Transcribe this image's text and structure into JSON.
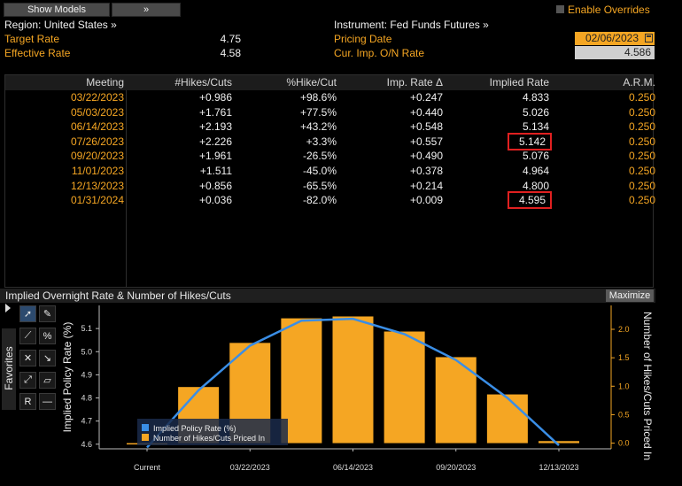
{
  "toolbar": {
    "show_models_label": "Show Models",
    "expand_label": "»",
    "enable_overrides_label": "Enable Overrides"
  },
  "info": {
    "region_label": "Region: United States »",
    "instrument_label": "Instrument: Fed Funds Futures »",
    "target_rate_label": "Target Rate",
    "target_rate_value": "4.75",
    "effective_rate_label": "Effective Rate",
    "effective_rate_value": "4.58",
    "pricing_date_label": "Pricing Date",
    "pricing_date_value": "02/06/2023",
    "cur_imp_label": "Cur. Imp. O/N Rate",
    "cur_imp_value": "4.586"
  },
  "table": {
    "headers": [
      "Meeting",
      "#Hikes/Cuts",
      "%Hike/Cut",
      "Imp. Rate Δ",
      "Implied Rate",
      "A.R.M."
    ],
    "rows": [
      {
        "meeting": "03/22/2023",
        "hikes": "+0.986",
        "pct": "+98.6%",
        "delta": "+0.247",
        "implied": "4.833",
        "arm": "0.250",
        "highlight": false
      },
      {
        "meeting": "05/03/2023",
        "hikes": "+1.761",
        "pct": "+77.5%",
        "delta": "+0.440",
        "implied": "5.026",
        "arm": "0.250",
        "highlight": false
      },
      {
        "meeting": "06/14/2023",
        "hikes": "+2.193",
        "pct": "+43.2%",
        "delta": "+0.548",
        "implied": "5.134",
        "arm": "0.250",
        "highlight": false
      },
      {
        "meeting": "07/26/2023",
        "hikes": "+2.226",
        "pct": "+3.3%",
        "delta": "+0.557",
        "implied": "5.142",
        "arm": "0.250",
        "highlight": true
      },
      {
        "meeting": "09/20/2023",
        "hikes": "+1.961",
        "pct": "-26.5%",
        "delta": "+0.490",
        "implied": "5.076",
        "arm": "0.250",
        "highlight": false
      },
      {
        "meeting": "11/01/2023",
        "hikes": "+1.511",
        "pct": "-45.0%",
        "delta": "+0.378",
        "implied": "4.964",
        "arm": "0.250",
        "highlight": false
      },
      {
        "meeting": "12/13/2023",
        "hikes": "+0.856",
        "pct": "-65.5%",
        "delta": "+0.214",
        "implied": "4.800",
        "arm": "0.250",
        "highlight": false
      },
      {
        "meeting": "01/31/2024",
        "hikes": "+0.036",
        "pct": "-82.0%",
        "delta": "+0.009",
        "implied": "4.595",
        "arm": "0.250",
        "highlight": true
      }
    ]
  },
  "chart_panel": {
    "title": "Implied Overnight Rate & Number of Hikes/Cuts",
    "maximize_label": "Maximize",
    "favorites_label": "Favorites"
  },
  "chart_data": {
    "type": "bar",
    "categories": [
      "Current",
      "03/22/2023",
      "05/03/2023",
      "06/14/2023",
      "07/26/2023",
      "09/20/2023",
      "11/01/2023",
      "12/13/2023",
      "01/31/2024"
    ],
    "x_tick_labels": [
      "Current",
      "03/22/2023",
      "06/14/2023",
      "09/20/2023",
      "12/13/2023"
    ],
    "series": [
      {
        "name": "Implied Policy Rate (%)",
        "type": "line",
        "axis": "left",
        "color": "#3a8ee6",
        "values": [
          4.586,
          4.833,
          5.026,
          5.134,
          5.142,
          5.076,
          4.964,
          4.8,
          4.595
        ]
      },
      {
        "name": "Number of Hikes/Cuts Priced In",
        "type": "bar",
        "axis": "right",
        "color": "#f5a623",
        "values": [
          0.0,
          0.986,
          1.761,
          2.193,
          2.226,
          1.961,
          1.511,
          0.856,
          0.036
        ]
      }
    ],
    "ylabel": "Implied Policy Rate (%)",
    "y2label": "Number of Hikes/Cuts Priced In",
    "ylim": [
      4.58,
      5.2
    ],
    "y2lim": [
      -0.1,
      2.42
    ],
    "y_ticks": [
      "4.6",
      "4.7",
      "4.8",
      "4.9",
      "5.0",
      "5.1"
    ],
    "y2_ticks": [
      "0.0",
      "0.5",
      "1.0",
      "1.5",
      "2.0"
    ],
    "legend_position": "bottom-left"
  },
  "colors": {
    "accent_orange": "#f5a623",
    "line_blue": "#3a8ee6",
    "highlight_red": "#e02020",
    "background": "#000000"
  }
}
